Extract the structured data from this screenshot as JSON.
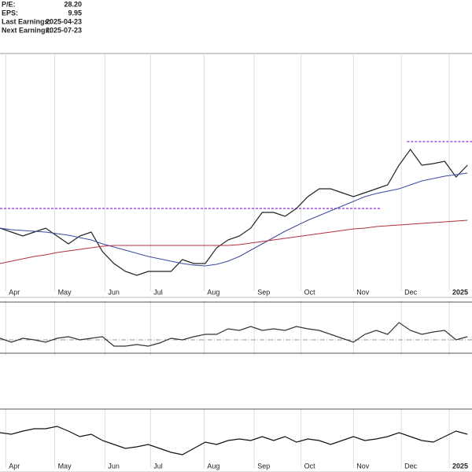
{
  "info": [
    {
      "label": "P/E:",
      "value": "28.20"
    },
    {
      "label": "EPS:",
      "value": "9.95"
    },
    {
      "label": "Last Earnings:",
      "value": "2025-04-23"
    },
    {
      "label": "Next Earnings:",
      "value": "2025-07-23"
    }
  ],
  "chart_data": [
    {
      "type": "line",
      "grid": true,
      "x": [
        0,
        1,
        2,
        3,
        4,
        5,
        6,
        7,
        8,
        9,
        10,
        11,
        12,
        13,
        14,
        15,
        16,
        17,
        18,
        19,
        20,
        21,
        22,
        23,
        24,
        25,
        26,
        27,
        28,
        29,
        30,
        31,
        32,
        33,
        34,
        35,
        36,
        37,
        38,
        39,
        40,
        41
      ],
      "xlim": [
        0,
        41.4
      ],
      "xticks": [
        {
          "value": 0.5,
          "label": "Apr"
        },
        {
          "value": 4.8,
          "label": "May"
        },
        {
          "value": 9.2,
          "label": "Jun"
        },
        {
          "value": 13.2,
          "label": "Jul"
        },
        {
          "value": 17.9,
          "label": "Aug"
        },
        {
          "value": 22.3,
          "label": "Sep"
        },
        {
          "value": 26.4,
          "label": "Oct"
        },
        {
          "value": 31,
          "label": "Nov"
        },
        {
          "value": 35.2,
          "label": "Dec"
        },
        {
          "value": 39.4,
          "label": "2025"
        }
      ],
      "ylim": [
        0,
        302
      ],
      "levels": [
        {
          "value": 105,
          "from": 0,
          "to": 33.4
        },
        {
          "value": 190,
          "from": 35.7,
          "to": 41.4
        }
      ],
      "level_color": "#8a2be2",
      "series": [
        {
          "color": "#222222",
          "values": [
            80,
            75,
            70,
            75,
            80,
            70,
            60,
            70,
            75,
            50,
            35,
            25,
            20,
            25,
            25,
            25,
            40,
            35,
            35,
            55,
            65,
            70,
            80,
            100,
            100,
            95,
            105,
            120,
            130,
            130,
            125,
            120,
            125,
            130,
            135,
            160,
            180,
            160,
            162,
            165,
            145,
            160
          ]
        },
        {
          "color": "#3b4aa0",
          "values": [
            80,
            78,
            77,
            76,
            75,
            73,
            71,
            68,
            65,
            60,
            56,
            52,
            48,
            44,
            41,
            38,
            35,
            33,
            32,
            34,
            38,
            44,
            52,
            60,
            68,
            76,
            83,
            90,
            96,
            102,
            108,
            114,
            120,
            124,
            127,
            130,
            135,
            140,
            143,
            146,
            148,
            150
          ]
        },
        {
          "color": "#b03040",
          "values": [
            35,
            38,
            41,
            44,
            46,
            49,
            51,
            53,
            55,
            57,
            58,
            58,
            58,
            58,
            58,
            58,
            58,
            58,
            58,
            58,
            58,
            59,
            61,
            63,
            65,
            67,
            69,
            71,
            73,
            75,
            77,
            79,
            80,
            82,
            83,
            84,
            85,
            86,
            87,
            88,
            89,
            90
          ]
        }
      ]
    },
    {
      "type": "line",
      "x": [
        0,
        1,
        2,
        3,
        4,
        5,
        6,
        7,
        8,
        9,
        10,
        11,
        12,
        13,
        14,
        15,
        16,
        17,
        18,
        19,
        20,
        21,
        22,
        23,
        24,
        25,
        26,
        27,
        28,
        29,
        30,
        31,
        32,
        33,
        34,
        35,
        36,
        37,
        38,
        39,
        40,
        41
      ],
      "xlim": [
        0,
        41.4
      ],
      "ylim": [
        0,
        70
      ],
      "ref_lines": [
        68,
        20,
        3
      ],
      "series": [
        {
          "color": "#333333",
          "values": [
            22,
            17,
            22,
            20,
            17,
            22,
            24,
            20,
            22,
            24,
            12,
            12,
            14,
            12,
            16,
            22,
            20,
            24,
            27,
            27,
            34,
            32,
            37,
            32,
            34,
            32,
            37,
            34,
            32,
            27,
            22,
            17,
            27,
            32,
            27,
            42,
            32,
            27,
            30,
            32,
            20,
            24
          ]
        }
      ]
    },
    {
      "type": "line",
      "x": [
        0,
        1,
        2,
        3,
        4,
        5,
        6,
        7,
        8,
        9,
        10,
        11,
        12,
        13,
        14,
        15,
        16,
        17,
        18,
        19,
        20,
        21,
        22,
        23,
        24,
        25,
        26,
        27,
        28,
        29,
        30,
        31,
        32,
        33,
        34,
        35,
        36,
        37,
        38,
        39,
        40,
        41
      ],
      "xlim": [
        0,
        41.4
      ],
      "ylim": [
        0,
        75
      ],
      "ref_lines": [
        75
      ],
      "series": [
        {
          "color": "#111111",
          "values": [
            45,
            43,
            47,
            50,
            50,
            53,
            47,
            40,
            43,
            35,
            30,
            25,
            27,
            30,
            25,
            20,
            17,
            25,
            33,
            30,
            35,
            37,
            35,
            40,
            35,
            40,
            33,
            37,
            35,
            30,
            35,
            40,
            35,
            37,
            40,
            45,
            40,
            35,
            33,
            40,
            47,
            43
          ]
        }
      ]
    }
  ]
}
